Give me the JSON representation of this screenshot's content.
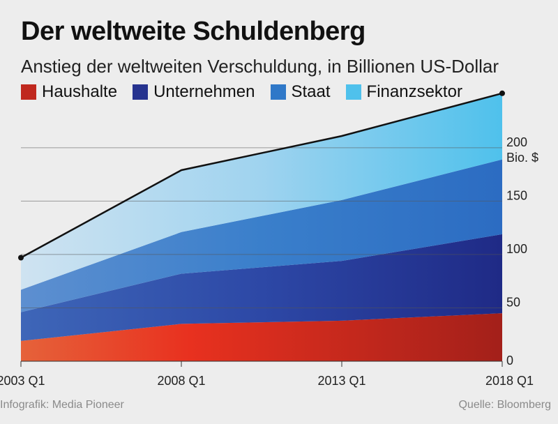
{
  "header": {
    "title": "Der weltweite Schuldenberg",
    "subtitle": "Anstieg der weltweiten Verschuldung, in Billionen US-Dollar"
  },
  "footer": {
    "credit": "Infografik: Media Pioneer",
    "source": "Quelle: Bloomberg"
  },
  "chart_data": {
    "type": "area",
    "stacked": true,
    "categories": [
      "2003 Q1",
      "2008 Q1",
      "2013 Q1",
      "2018 Q1"
    ],
    "series": [
      {
        "name": "Haushalte",
        "values": [
          19,
          35,
          38,
          45
        ],
        "color": "#c0281e"
      },
      {
        "name": "Unternehmen",
        "values": [
          27,
          47,
          56,
          74
        ],
        "color": "#26338f"
      },
      {
        "name": "Staat",
        "values": [
          21,
          39,
          57,
          70
        ],
        "color": "#2f78c8"
      },
      {
        "name": "Finanzsektor",
        "values": [
          30,
          58,
          60,
          62
        ],
        "color": "#4fc1ec"
      }
    ],
    "total_line": [
      97,
      179,
      211,
      251
    ],
    "yticks": [
      0,
      50,
      100,
      150,
      200
    ],
    "ylim": [
      0,
      260
    ],
    "y_unit_label": "Bio. $",
    "grid": true,
    "legend_position": "top-left"
  }
}
